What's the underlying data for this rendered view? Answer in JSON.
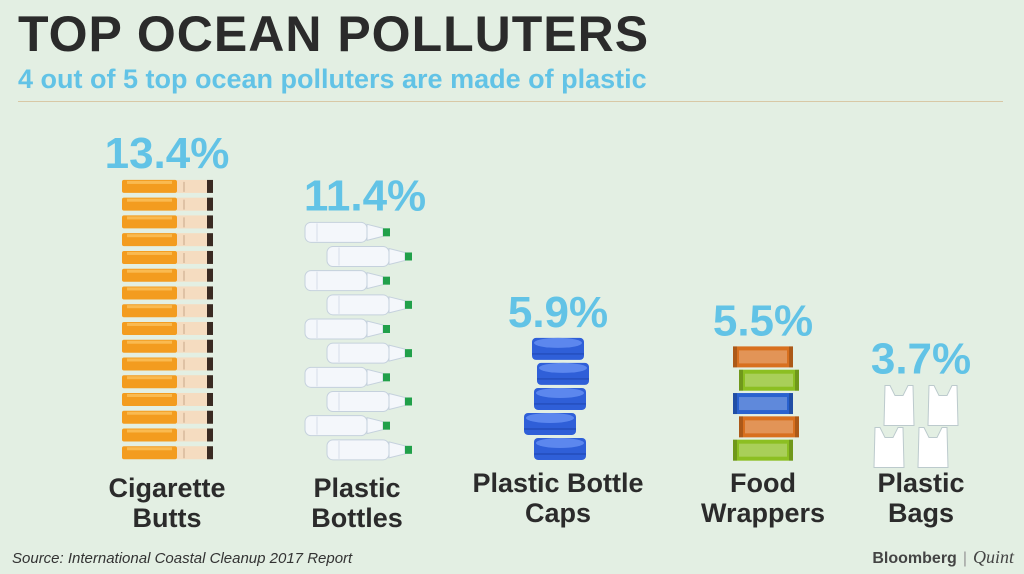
{
  "header": {
    "title": "TOP OCEAN POLLUTERS",
    "subtitle": "4 out of 5 top ocean polluters are made of plastic"
  },
  "chart_data": {
    "type": "bar",
    "title": "TOP OCEAN POLLUTERS",
    "subtitle": "4 out of 5 top ocean polluters are made of plastic",
    "categories": [
      "Cigarette\nButts",
      "Plastic\nBottles",
      "Plastic Bottle\nCaps",
      "Food\nWrappers",
      "Plastic\nBags"
    ],
    "values": [
      13.4,
      11.4,
      5.9,
      5.5,
      3.7
    ],
    "value_labels": [
      "13.4%",
      "11.4%",
      "5.9%",
      "5.5%",
      "3.7%"
    ],
    "unit": "%",
    "icons": [
      "cigarette-icon",
      "plastic-bottle-icon",
      "bottle-cap-icon",
      "food-wrapper-icon",
      "plastic-bag-icon"
    ],
    "grid": false,
    "legend": "none"
  },
  "colors": {
    "background": "#e3efe3",
    "title": "#2b2b2b",
    "accent": "#62c3e6",
    "cigarette_filter": "#f39c1f",
    "cigarette_paper": "#f5dcc0",
    "bottle": "#f4f7fb",
    "bottle_cap_green": "#21a04a",
    "cap_blue": "#2f5fd8",
    "wrapper_orange": "#d8701f",
    "wrapper_green": "#8cbf22",
    "wrapper_blue": "#2a62cf",
    "bag": "#ffffff"
  },
  "footer": {
    "source": "Source:  International Coastal Cleanup 2017 Report",
    "brand_primary": "Bloomberg",
    "brand_separator": "|",
    "brand_secondary": "Quint"
  }
}
